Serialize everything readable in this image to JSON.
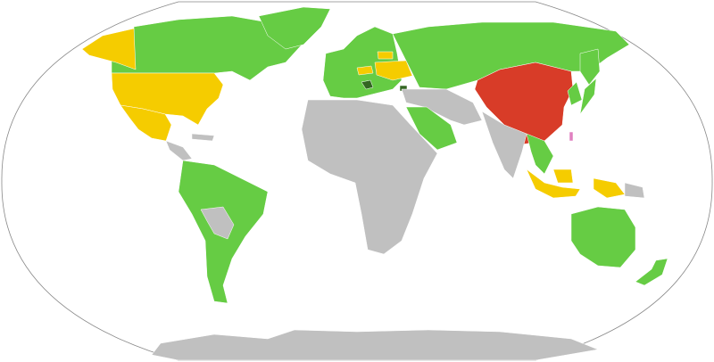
{
  "map": {
    "projection": "robinson",
    "colors": {
      "green": "#66cc44",
      "yellow": "#f5cc00",
      "red": "#d83c28",
      "gray": "#c0c0c0",
      "dark_green": "#336622",
      "pink": "#e080c0",
      "outline": "#888888",
      "background": "#ffffff"
    },
    "regions": [
      {
        "id": "canada",
        "color": "green"
      },
      {
        "id": "greenland",
        "color": "green"
      },
      {
        "id": "alaska",
        "color": "yellow"
      },
      {
        "id": "usa",
        "color": "yellow"
      },
      {
        "id": "mexico",
        "color": "yellow"
      },
      {
        "id": "central-america",
        "color": "gray"
      },
      {
        "id": "south-america",
        "color": "green"
      },
      {
        "id": "bolivia-paraguay",
        "color": "gray"
      },
      {
        "id": "europe",
        "color": "green"
      },
      {
        "id": "ukraine",
        "color": "yellow"
      },
      {
        "id": "czechia",
        "color": "yellow"
      },
      {
        "id": "belarus-lithuania",
        "color": "yellow"
      },
      {
        "id": "balkans",
        "color": "dark_green"
      },
      {
        "id": "russia-central-asia",
        "color": "green"
      },
      {
        "id": "china",
        "color": "red"
      },
      {
        "id": "taiwan",
        "color": "pink"
      },
      {
        "id": "africa",
        "color": "gray"
      },
      {
        "id": "middle-east",
        "color": "gray"
      },
      {
        "id": "saudi-arabia",
        "color": "green"
      },
      {
        "id": "india",
        "color": "gray"
      },
      {
        "id": "southeast-asia",
        "color": "green"
      },
      {
        "id": "indonesia",
        "color": "yellow"
      },
      {
        "id": "japan-korea",
        "color": "green"
      },
      {
        "id": "australia",
        "color": "green"
      },
      {
        "id": "new-zealand",
        "color": "green"
      },
      {
        "id": "papua",
        "color": "gray"
      },
      {
        "id": "antarctica",
        "color": "gray"
      }
    ]
  }
}
